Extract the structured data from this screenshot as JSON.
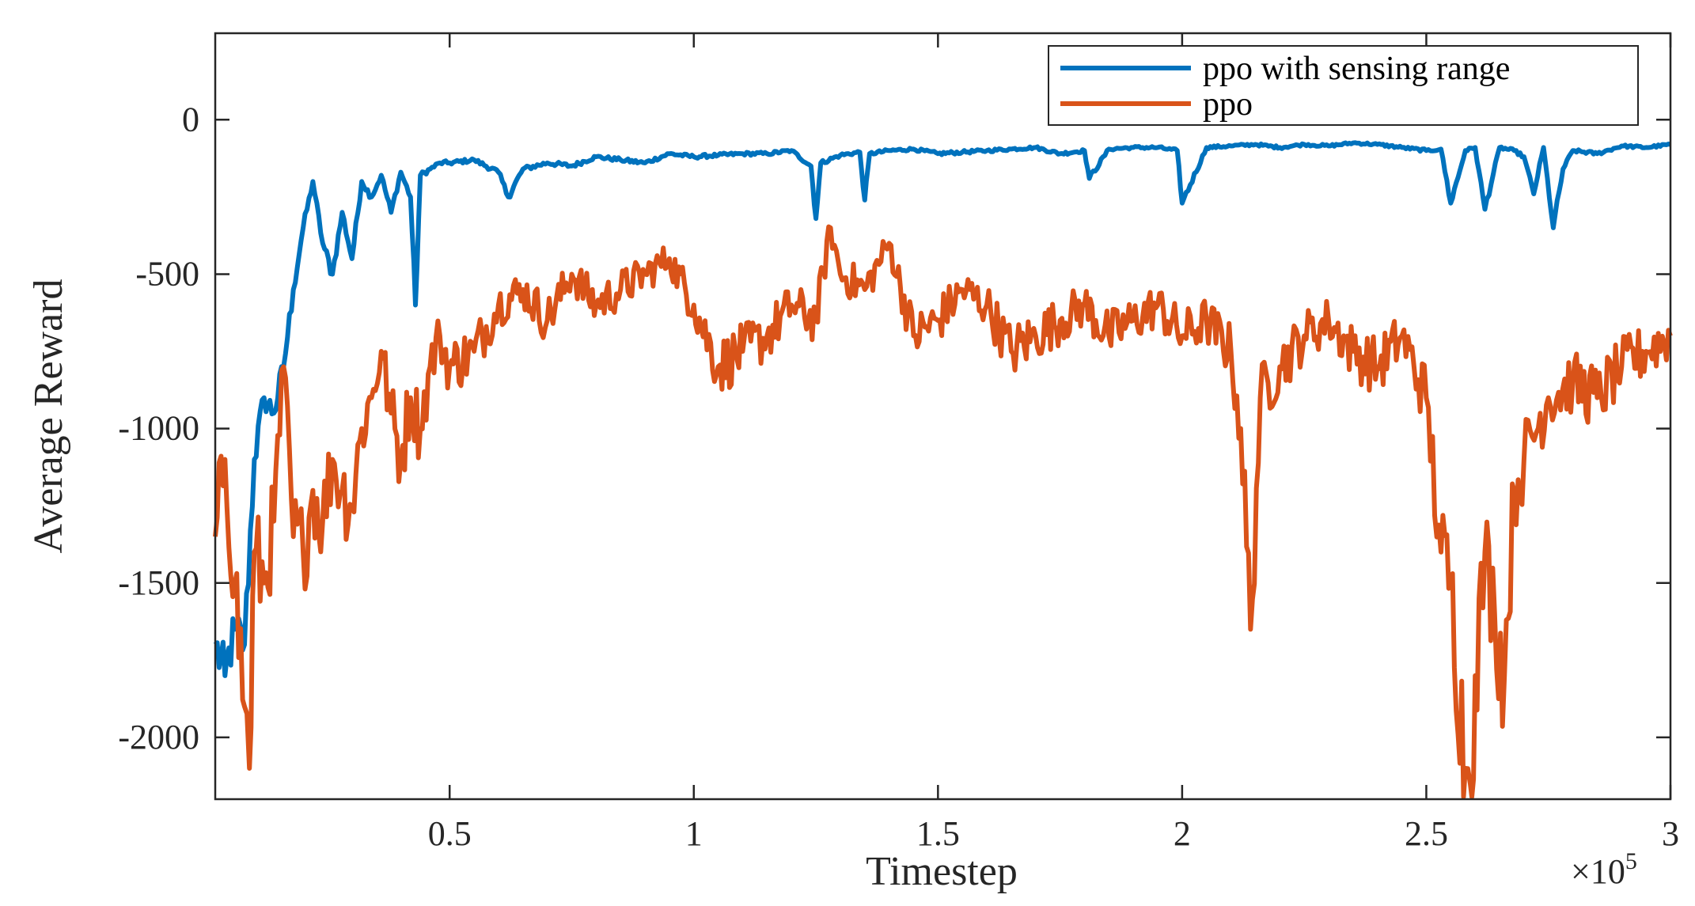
{
  "chart_data": {
    "type": "line",
    "title": "",
    "xlabel": "Timestep",
    "ylabel": "Average Reward",
    "x_multiplier": "×10",
    "x_multiplier_exp": "5",
    "xlim": [
      0.02,
      3.0
    ],
    "ylim": [
      -2200,
      280
    ],
    "grid": false,
    "legend_position": "top-right",
    "x_ticks": [
      0.5,
      1,
      1.5,
      2,
      2.5,
      3
    ],
    "x_tick_labels": [
      "0.5",
      "1",
      "1.5",
      "2",
      "2.5",
      "3"
    ],
    "y_ticks": [
      0,
      -500,
      -1000,
      -1500,
      -2000
    ],
    "y_tick_labels": [
      "0",
      "-500",
      "-1000",
      "-1500",
      "-2000"
    ],
    "series": [
      {
        "name": "ppo with sensing range",
        "color": "#0072BD",
        "x": [
          0.02,
          0.04,
          0.06,
          0.08,
          0.1,
          0.12,
          0.14,
          0.16,
          0.18,
          0.2,
          0.22,
          0.24,
          0.26,
          0.28,
          0.3,
          0.32,
          0.34,
          0.36,
          0.38,
          0.4,
          0.42,
          0.43,
          0.44,
          0.46,
          0.48,
          0.5,
          0.55,
          0.6,
          0.62,
          0.65,
          0.7,
          0.75,
          0.8,
          0.85,
          0.9,
          0.95,
          1.0,
          1.05,
          1.1,
          1.15,
          1.2,
          1.24,
          1.25,
          1.26,
          1.3,
          1.34,
          1.35,
          1.36,
          1.4,
          1.45,
          1.5,
          1.55,
          1.6,
          1.65,
          1.7,
          1.75,
          1.8,
          1.81,
          1.85,
          1.9,
          1.95,
          1.99,
          2.0,
          2.05,
          2.1,
          2.15,
          2.2,
          2.25,
          2.3,
          2.35,
          2.4,
          2.45,
          2.5,
          2.53,
          2.55,
          2.58,
          2.6,
          2.62,
          2.65,
          2.68,
          2.7,
          2.72,
          2.74,
          2.76,
          2.78,
          2.8,
          2.85,
          2.9,
          2.95,
          3.0
        ],
        "y": [
          -1700,
          -1800,
          -1650,
          -1700,
          -1100,
          -900,
          -950,
          -800,
          -550,
          -350,
          -200,
          -400,
          -500,
          -300,
          -450,
          -200,
          -250,
          -180,
          -300,
          -170,
          -250,
          -600,
          -180,
          -160,
          -140,
          -140,
          -130,
          -170,
          -250,
          -160,
          -140,
          -150,
          -120,
          -130,
          -140,
          -110,
          -120,
          -115,
          -110,
          -110,
          -100,
          -150,
          -320,
          -140,
          -115,
          -105,
          -260,
          -110,
          -100,
          -95,
          -110,
          -105,
          -100,
          -95,
          -90,
          -110,
          -100,
          -190,
          -95,
          -90,
          -90,
          -100,
          -270,
          -90,
          -85,
          -80,
          -90,
          -80,
          -85,
          -75,
          -80,
          -90,
          -100,
          -95,
          -270,
          -100,
          -90,
          -290,
          -90,
          -100,
          -120,
          -240,
          -90,
          -350,
          -160,
          -100,
          -110,
          -85,
          -90,
          -80
        ]
      },
      {
        "name": "ppo",
        "color": "#D95319",
        "x": [
          0.02,
          0.04,
          0.06,
          0.08,
          0.09,
          0.1,
          0.12,
          0.14,
          0.16,
          0.18,
          0.2,
          0.22,
          0.24,
          0.26,
          0.28,
          0.3,
          0.32,
          0.34,
          0.36,
          0.38,
          0.4,
          0.42,
          0.44,
          0.46,
          0.48,
          0.5,
          0.55,
          0.6,
          0.65,
          0.7,
          0.75,
          0.8,
          0.85,
          0.9,
          0.95,
          1.0,
          1.05,
          1.1,
          1.15,
          1.2,
          1.25,
          1.28,
          1.3,
          1.35,
          1.4,
          1.45,
          1.5,
          1.55,
          1.6,
          1.65,
          1.7,
          1.75,
          1.8,
          1.85,
          1.9,
          1.95,
          2.0,
          2.05,
          2.1,
          2.12,
          2.14,
          2.16,
          2.2,
          2.25,
          2.3,
          2.35,
          2.4,
          2.45,
          2.5,
          2.53,
          2.55,
          2.58,
          2.59,
          2.6,
          2.62,
          2.64,
          2.66,
          2.68,
          2.7,
          2.75,
          2.8,
          2.85,
          2.9,
          2.95,
          3.0
        ],
        "y": [
          -1350,
          -1100,
          -1500,
          -1900,
          -2100,
          -1400,
          -1500,
          -1300,
          -800,
          -1350,
          -1400,
          -1200,
          -1300,
          -1100,
          -1200,
          -1250,
          -1000,
          -900,
          -750,
          -950,
          -1100,
          -900,
          -1000,
          -800,
          -700,
          -800,
          -750,
          -600,
          -550,
          -650,
          -500,
          -600,
          -550,
          -500,
          -450,
          -600,
          -800,
          -750,
          -700,
          -600,
          -650,
          -350,
          -500,
          -550,
          -400,
          -700,
          -650,
          -550,
          -600,
          -750,
          -700,
          -650,
          -600,
          -700,
          -650,
          -600,
          -700,
          -650,
          -750,
          -1000,
          -1650,
          -900,
          -800,
          -700,
          -650,
          -750,
          -800,
          -700,
          -900,
          -1400,
          -1500,
          -2100,
          -2150,
          -1800,
          -1400,
          -1600,
          -1800,
          -1200,
          -1100,
          -900,
          -850,
          -900,
          -800,
          -750,
          -700
        ]
      }
    ]
  }
}
